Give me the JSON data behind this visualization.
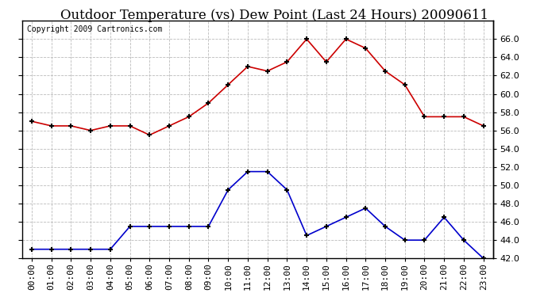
{
  "title": "Outdoor Temperature (vs) Dew Point (Last 24 Hours) 20090611",
  "copyright": "Copyright 2009 Cartronics.com",
  "hours": [
    "00:00",
    "01:00",
    "02:00",
    "03:00",
    "04:00",
    "05:00",
    "06:00",
    "07:00",
    "08:00",
    "09:00",
    "10:00",
    "11:00",
    "12:00",
    "13:00",
    "14:00",
    "15:00",
    "16:00",
    "17:00",
    "18:00",
    "19:00",
    "20:00",
    "21:00",
    "22:00",
    "23:00"
  ],
  "temp": [
    57.0,
    56.5,
    56.5,
    56.0,
    56.5,
    56.5,
    55.5,
    56.5,
    57.5,
    59.0,
    61.0,
    63.0,
    62.5,
    63.5,
    66.0,
    63.5,
    66.0,
    65.0,
    62.5,
    61.0,
    57.5,
    57.5,
    57.5,
    56.5
  ],
  "dew": [
    43.0,
    43.0,
    43.0,
    43.0,
    43.0,
    45.5,
    45.5,
    45.5,
    45.5,
    45.5,
    49.5,
    51.5,
    51.5,
    49.5,
    44.5,
    45.5,
    46.5,
    47.5,
    45.5,
    44.0,
    44.0,
    46.5,
    44.0,
    42.0
  ],
  "temp_color": "#cc0000",
  "dew_color": "#0000cc",
  "bg_color": "#ffffff",
  "grid_color": "#bbbbbb",
  "ylim": [
    42.0,
    68.0
  ],
  "yticks": [
    42.0,
    44.0,
    46.0,
    48.0,
    50.0,
    52.0,
    54.0,
    56.0,
    58.0,
    60.0,
    62.0,
    64.0,
    66.0
  ],
  "title_fontsize": 12,
  "copyright_fontsize": 7,
  "tick_fontsize": 8
}
